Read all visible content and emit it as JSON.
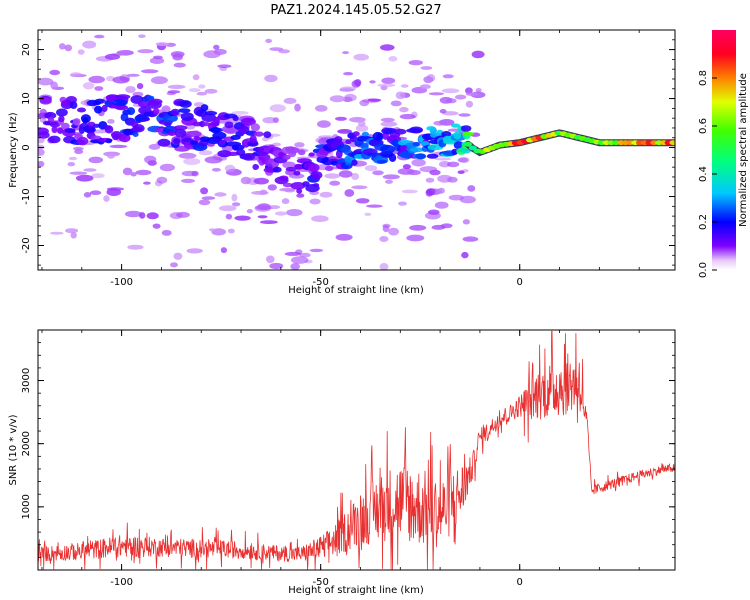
{
  "title": "PAZ1.2024.145.05.52.G27",
  "colors": {
    "snr_line": "#e83030",
    "axis": "#000000",
    "track_fill": "#3a3f5a"
  },
  "chart_data": [
    {
      "type": "heatmap",
      "name": "spectrogram",
      "xlabel": "Height of straight line (km)",
      "ylabel": "Frequency (Hz)",
      "xlim": [
        -121,
        39
      ],
      "ylim": [
        -25,
        24
      ],
      "xticks": [
        -100,
        -50,
        0
      ],
      "yticks": [
        -20,
        -10,
        0,
        10,
        20
      ],
      "colorbar": {
        "label": "Normalized spectral amplitude",
        "range": [
          0.0,
          1.0
        ],
        "ticks": [
          "0.0",
          "0.2",
          "0.4",
          "0.6",
          "0.8"
        ],
        "tick_values": [
          0.0,
          0.2,
          0.4,
          0.6,
          0.8
        ],
        "colormap": "gist_rainbow_r, white below threshold"
      },
      "ridge": {
        "x": [
          -120,
          -110,
          -100,
          -95,
          -90,
          -85,
          -80,
          -75,
          -70,
          -65,
          -60,
          -55,
          -50,
          -45,
          -40,
          -35,
          -30,
          -25,
          -20,
          -15,
          -12,
          -10,
          -5,
          0,
          5,
          10,
          15,
          20,
          25,
          30,
          35,
          39
        ],
        "y": [
          6,
          5,
          6,
          7,
          5,
          5,
          4,
          3,
          2,
          0,
          -3,
          -6,
          -2,
          -1,
          0,
          0,
          1,
          1,
          1,
          2,
          0,
          -1,
          0.5,
          1,
          2,
          3,
          2,
          1,
          1,
          1,
          1,
          1
        ],
        "amplitude": [
          0.12,
          0.15,
          0.18,
          0.2,
          0.2,
          0.18,
          0.17,
          0.16,
          0.15,
          0.14,
          0.14,
          0.13,
          0.18,
          0.2,
          0.25,
          0.22,
          0.28,
          0.25,
          0.3,
          0.35,
          0.5,
          0.55,
          0.7,
          0.8,
          0.75,
          0.6,
          0.55,
          0.6,
          0.7,
          0.75,
          0.8,
          0.85
        ]
      }
    },
    {
      "type": "line",
      "name": "snr",
      "xlabel": "Height of straight line (km)",
      "ylabel": "SNR (10 * v/v)",
      "xlim": [
        -121,
        39
      ],
      "ylim": [
        0,
        3800
      ],
      "xticks": [
        -100,
        -50,
        0
      ],
      "yticks": [
        1000,
        2000,
        3000
      ],
      "envelope": {
        "x": [
          -121,
          -110,
          -100,
          -90,
          -80,
          -70,
          -60,
          -55,
          -50,
          -47,
          -43,
          -40,
          -35,
          -30,
          -25,
          -20,
          -15,
          -12,
          -10,
          -8,
          -5,
          -2,
          0,
          3,
          5,
          10,
          15,
          17,
          18,
          20,
          25,
          30,
          35,
          39
        ],
        "base": [
          250,
          300,
          380,
          360,
          340,
          320,
          260,
          250,
          350,
          450,
          650,
          800,
          1000,
          1100,
          1000,
          900,
          1200,
          1600,
          2100,
          2200,
          2400,
          2500,
          2600,
          2700,
          2800,
          2900,
          3000,
          2300,
          1250,
          1300,
          1400,
          1500,
          1580,
          1620
        ],
        "spread": [
          180,
          200,
          260,
          220,
          220,
          200,
          180,
          180,
          280,
          350,
          500,
          600,
          800,
          900,
          900,
          800,
          700,
          300,
          200,
          200,
          200,
          200,
          250,
          500,
          600,
          700,
          700,
          150,
          120,
          120,
          110,
          110,
          100,
          100
        ]
      }
    }
  ]
}
